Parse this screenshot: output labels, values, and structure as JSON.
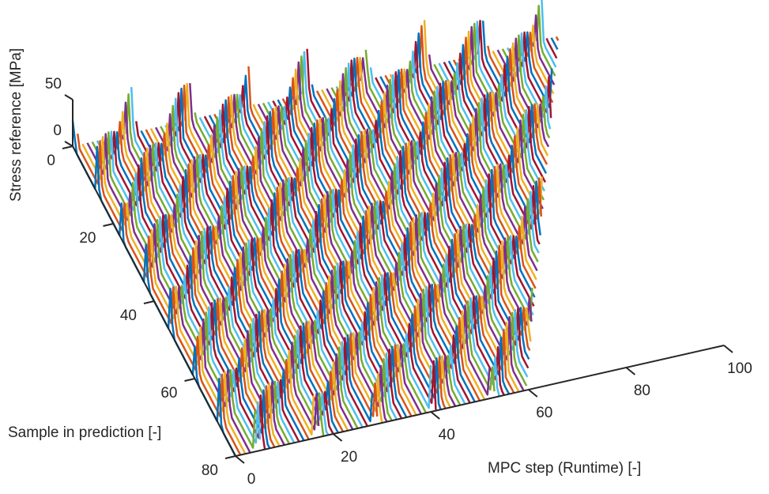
{
  "chart_data": {
    "type": "waterfall-3d",
    "xlabel": "MPC step (Runtime) [-]",
    "ylabel": "Sample in prediction [-]",
    "zlabel": "Stress reference [MPa]",
    "xlim": [
      0,
      100
    ],
    "ylim": [
      0,
      80
    ],
    "zlim": [
      0,
      50
    ],
    "x_ticks": [
      "0",
      "20",
      "40",
      "60",
      "80",
      "100"
    ],
    "y_ticks": [
      "0",
      "20",
      "40",
      "60",
      "80"
    ],
    "z_ticks": [
      "0",
      "50"
    ],
    "steps": 100,
    "horizon": 80,
    "peak_period": 12,
    "peak_value": 50,
    "baseline": 0,
    "series_colors": [
      "#0072BD",
      "#D95319",
      "#EDB120",
      "#7E2F8E",
      "#77AC30",
      "#4DBEEE",
      "#A2142F"
    ],
    "axis_color": "#262626",
    "grid": false
  }
}
